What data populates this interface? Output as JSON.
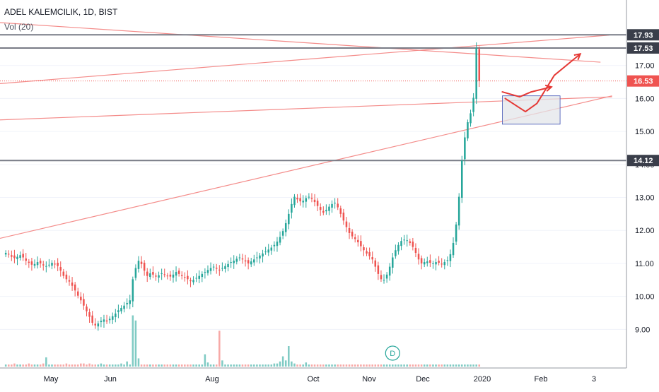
{
  "header": {
    "symbol": "ADEL KALEMCILIK, 1D, BIST",
    "volume_label": "Vol (20)"
  },
  "colors": {
    "up": "#26a69a",
    "down": "#ef5350",
    "volume_up": "#80cbc4",
    "volume_down": "#f7a9a7",
    "trendline": "#f48c8a",
    "level_line": "#787b86",
    "last_price_tag": "#ef5350",
    "hand_drawn_arrow": "#e53935",
    "target_box_fill": "#e3e5ea",
    "target_box_stroke": "#3f51b5"
  },
  "chart_data": {
    "type": "candlestick",
    "title": "ADEL KALEMCILIK, 1D, BIST",
    "indicator": "Vol (20)",
    "x_tick_labels": [
      "May",
      "Jun",
      "Aug",
      "Oct",
      "Nov",
      "Dec",
      "2020",
      "Feb",
      "3"
    ],
    "y_ticks": [
      9.0,
      10.0,
      11.0,
      12.0,
      13.0,
      14.0,
      15.0,
      16.0,
      17.0
    ],
    "y_tick_labels": [
      "9.00",
      "10.00",
      "11.00",
      "12.00",
      "13.00",
      "14.00",
      "15.00",
      "16.00",
      "17.00"
    ],
    "ylim": [
      8.0,
      18.3
    ],
    "price_tags": [
      {
        "label": "17.93",
        "value": 17.93,
        "kind": "level"
      },
      {
        "label": "17.53",
        "value": 17.53,
        "kind": "level"
      },
      {
        "label": "16.53",
        "value": 16.53,
        "kind": "last"
      },
      {
        "label": "14.12",
        "value": 14.12,
        "kind": "level"
      }
    ],
    "x_range_days": [
      -88,
      129
    ],
    "candles_first_day": -86,
    "closes": [
      11.32,
      11.28,
      11.2,
      11.16,
      11.2,
      11.25,
      11.18,
      11.08,
      11.02,
      10.96,
      10.98,
      11.04,
      11.0,
      10.94,
      10.92,
      10.96,
      11.02,
      10.98,
      10.92,
      10.78,
      10.62,
      10.52,
      10.45,
      10.32,
      10.18,
      10.02,
      9.88,
      9.72,
      9.55,
      9.38,
      9.2,
      9.12,
      9.18,
      9.26,
      9.3,
      9.24,
      9.32,
      9.4,
      9.48,
      9.58,
      9.65,
      9.72,
      9.8,
      9.88,
      10.52,
      10.86,
      11.08,
      10.98,
      10.78,
      10.62,
      10.7,
      10.66,
      10.6,
      10.64,
      10.7,
      10.66,
      10.62,
      10.6,
      10.66,
      10.74,
      10.68,
      10.62,
      10.58,
      10.52,
      10.46,
      10.5,
      10.56,
      10.62,
      10.68,
      10.74,
      10.8,
      10.86,
      10.9,
      10.84,
      10.8,
      10.86,
      10.92,
      10.98,
      11.04,
      11.08,
      11.14,
      11.18,
      11.12,
      11.06,
      11.0,
      11.06,
      11.12,
      11.18,
      11.24,
      11.3,
      11.36,
      11.42,
      11.48,
      11.56,
      11.66,
      11.8,
      11.98,
      12.22,
      12.5,
      12.8,
      13.02,
      12.94,
      12.88,
      12.9,
      12.98,
      13.02,
      12.96,
      12.86,
      12.74,
      12.62,
      12.54,
      12.62,
      12.72,
      12.8,
      12.84,
      12.7,
      12.5,
      12.3,
      12.1,
      11.92,
      11.82,
      11.74,
      11.64,
      11.52,
      11.4,
      11.3,
      11.22,
      11.12,
      10.9,
      10.68,
      10.52,
      10.5,
      10.66,
      10.9,
      11.18,
      11.4,
      11.56,
      11.68,
      11.72,
      11.7,
      11.62,
      11.5,
      11.32,
      11.12,
      11.0,
      11.04,
      11.06,
      11.02,
      11.0,
      11.04,
      11.02,
      10.98,
      11.04,
      11.1,
      11.28,
      11.62,
      12.18,
      13.02,
      14.12,
      14.82,
      15.28,
      15.55,
      16.02,
      17.53,
      16.53
    ],
    "volumes": [
      0.02,
      0.02,
      0.02,
      0.03,
      0.02,
      0.02,
      0.02,
      0.02,
      0.03,
      0.02,
      0.02,
      0.02,
      0.02,
      0.03,
      0.09,
      0.02,
      0.02,
      0.02,
      0.02,
      0.02,
      0.02,
      0.03,
      0.02,
      0.02,
      0.02,
      0.02,
      0.03,
      0.03,
      0.02,
      0.03,
      0.02,
      0.02,
      0.02,
      0.03,
      0.02,
      0.02,
      0.02,
      0.02,
      0.02,
      0.02,
      0.03,
      0.02,
      0.05,
      0.02,
      0.5,
      0.45,
      0.08,
      0.02,
      0.02,
      0.02,
      0.02,
      0.02,
      0.02,
      0.02,
      0.02,
      0.02,
      0.02,
      0.02,
      0.02,
      0.02,
      0.02,
      0.02,
      0.02,
      0.02,
      0.02,
      0.02,
      0.02,
      0.02,
      0.02,
      0.12,
      0.04,
      0.02,
      0.02,
      0.02,
      0.35,
      0.06,
      0.02,
      0.02,
      0.02,
      0.02,
      0.02,
      0.02,
      0.02,
      0.02,
      0.02,
      0.02,
      0.02,
      0.02,
      0.02,
      0.02,
      0.02,
      0.02,
      0.02,
      0.03,
      0.03,
      0.05,
      0.1,
      0.06,
      0.2,
      0.05,
      0.03,
      0.02,
      0.02,
      0.02,
      0.04,
      0.02,
      0.02,
      0.02,
      0.02,
      0.02,
      0.02,
      0.02,
      0.02,
      0.02,
      0.02,
      0.02,
      0.02,
      0.02,
      0.02,
      0.02,
      0.02,
      0.02,
      0.02,
      0.02,
      0.02,
      0.02,
      0.02,
      0.02,
      0.02,
      0.02,
      0.02,
      0.02,
      0.02,
      0.02,
      0.02,
      0.02,
      0.02,
      0.02,
      0.02,
      0.02,
      0.02,
      0.02,
      0.02,
      0.02,
      0.02,
      0.02,
      0.02,
      0.02,
      0.02,
      0.02,
      0.02,
      0.02,
      0.02,
      0.02,
      0.02,
      0.02,
      0.02,
      0.02,
      0.02,
      0.02,
      0.02,
      0.02,
      0.02,
      0.02,
      0.02,
      0.02,
      0.02,
      0.02
    ],
    "horizontal_levels": [
      17.93,
      17.53,
      14.12
    ],
    "last_price_line": 16.53,
    "trendlines": [
      {
        "from": [
          -88,
          18.3
        ],
        "to": [
          120,
          17.1
        ]
      },
      {
        "from": [
          -88,
          16.45
        ],
        "to": [
          123,
          17.92
        ]
      },
      {
        "from": [
          -88,
          15.35
        ],
        "to": [
          124,
          16.05
        ]
      },
      {
        "from": [
          -88,
          11.76
        ],
        "to": [
          124,
          16.08
        ]
      }
    ],
    "target_box": {
      "x_from": 86,
      "x_to": 106,
      "y_from": 15.22,
      "y_to": 16.08
    },
    "event_marker": {
      "label": "D",
      "day": 48
    },
    "hand_drawn_projection": [
      [
        87,
        16.0
      ],
      [
        94,
        15.6
      ],
      [
        98,
        15.85
      ],
      [
        104,
        16.7
      ],
      [
        113,
        17.35
      ]
    ],
    "hand_drawn_projection_2": [
      [
        86,
        16.2
      ],
      [
        92,
        16.05
      ],
      [
        96,
        16.2
      ],
      [
        103,
        16.35
      ]
    ]
  }
}
